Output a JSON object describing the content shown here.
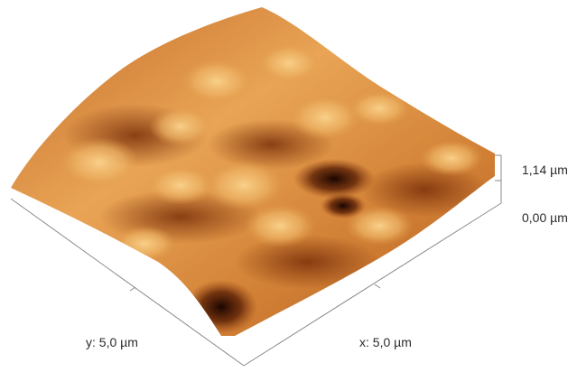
{
  "axes": {
    "x_label": "x: 5,0 µm",
    "y_label": "y: 5,0 µm",
    "z_max_label": "1,14 µm",
    "z_min_label": "0,00 µm"
  },
  "colors": {
    "background": "#ffffff",
    "surface_dark": "#1a0500",
    "surface_mid": "#b5581c",
    "surface_light": "#f7c77a",
    "axis_line": "#8a8a8a"
  }
}
